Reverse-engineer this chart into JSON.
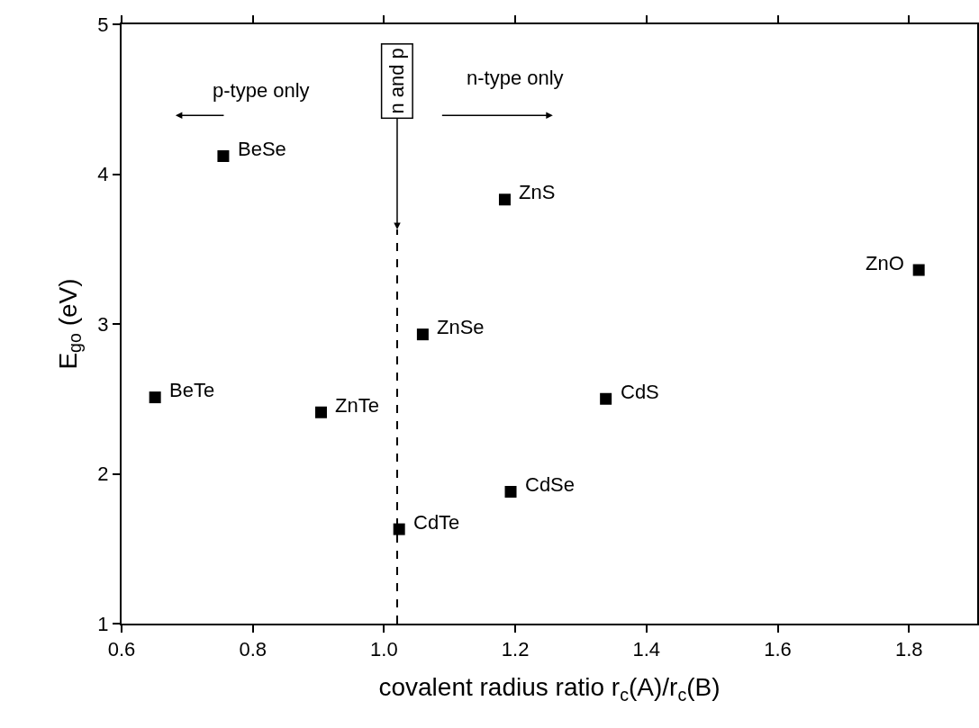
{
  "chart_data": {
    "type": "scatter",
    "xlabel": "covalent radius ratio r$_{c}$(A)/r$_{c}$(B)",
    "ylabel": "E$_{go}$ (eV)",
    "xlim": [
      0.6,
      1.904
    ],
    "xticks": [
      0.6,
      0.8,
      {
        "value": 1,
        "label": "1.0"
      },
      1.2,
      1.4,
      1.6,
      1.8
    ],
    "ylim": [
      1,
      5
    ],
    "yticks": [
      1,
      2,
      3,
      4,
      5
    ],
    "series": [
      {
        "color": "#000000",
        "marker": "square",
        "x": [
          0.755,
          1.184,
          1.815,
          1.059,
          0.651,
          0.904,
          1.338,
          1.193,
          1.023
        ],
        "values": [
          4.12,
          3.83,
          3.36,
          2.93,
          2.51,
          2.41,
          2.5,
          1.88,
          1.63
        ]
      },
      {
        "type": "line",
        "color": "#000000",
        "marker": "none",
        "line_style": "dashed",
        "x": [
          1.02,
          1.02
        ],
        "values": [
          1,
          3.63
        ]
      }
    ],
    "annotations": [
      {
        "text": "BeSe",
        "x": 0.755,
        "y": 4.12
      },
      {
        "text": "ZnS",
        "x": 1.184,
        "y": 3.83
      },
      {
        "text": "ZnO",
        "x": 1.815,
        "y": 3.36
      },
      {
        "text": "ZnSe",
        "x": 1.059,
        "y": 2.93
      },
      {
        "text": "BeTe",
        "x": 0.651,
        "y": 2.51
      },
      {
        "text": "ZnTe",
        "x": 0.904,
        "y": 2.41
      },
      {
        "text": "CdS",
        "x": 1.338,
        "y": 2.5
      },
      {
        "text": "CdSe",
        "x": 1.193,
        "y": 1.88
      },
      {
        "text": "CdTe",
        "x": 1.023,
        "y": 1.63
      },
      "p-type only",
      "n-type only",
      {
        "text": "n and p",
        "x": 1.02,
        "y": 3.63
      }
    ]
  }
}
